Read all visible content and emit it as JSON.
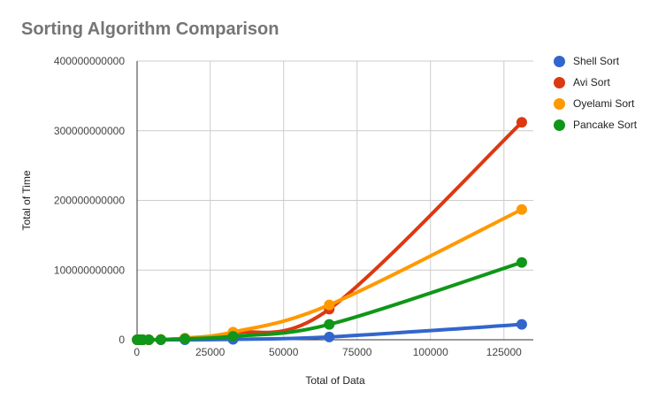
{
  "chart_data": {
    "type": "line",
    "title": "Sorting Algorithm Comparison",
    "xlabel": "Total of Data",
    "ylabel": "Total of Time",
    "xlim": [
      -500,
      135000
    ],
    "ylim": [
      0,
      400000000000
    ],
    "x_ticks": [
      0,
      25000,
      50000,
      75000,
      100000,
      125000
    ],
    "y_ticks": [
      0,
      100000000000,
      200000000000,
      300000000000,
      400000000000
    ],
    "grid": true,
    "legend_position": "right",
    "x": [
      128,
      256,
      512,
      1024,
      2048,
      4096,
      8192,
      16384,
      32768,
      65536,
      131072
    ],
    "series": [
      {
        "name": "Shell Sort",
        "color": "#3366cc",
        "values": [
          0,
          0,
          0,
          0,
          0,
          0,
          0,
          0,
          600000000,
          4000000000,
          22000000000
        ]
      },
      {
        "name": "Avi Sort",
        "color": "#dc3912",
        "values": [
          0,
          0,
          0,
          0,
          0,
          0,
          300000000,
          2000000000,
          10000000000,
          44000000000,
          312000000000
        ]
      },
      {
        "name": "Oyelami Sort",
        "color": "#ff9900",
        "values": [
          0,
          0,
          0,
          0,
          0,
          0,
          400000000,
          2300000000,
          11000000000,
          50000000000,
          187000000000
        ]
      },
      {
        "name": "Pancake Sort",
        "color": "#109618",
        "values": [
          0,
          0,
          0,
          0,
          0,
          0,
          200000000,
          1200000000,
          5000000000,
          22000000000,
          111000000000
        ]
      }
    ]
  }
}
